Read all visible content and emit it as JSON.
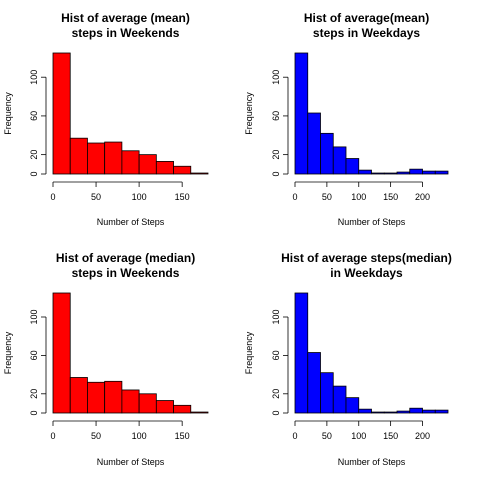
{
  "chart_data": [
    {
      "type": "bar",
      "title_lines": [
        "Hist of average (mean)",
        "steps in Weekends"
      ],
      "xlabel": "Number of Steps",
      "ylabel": "Frequency",
      "bar_color": "#ff0000",
      "bin_edges": [
        0,
        20,
        40,
        60,
        80,
        100,
        120,
        140,
        160,
        180
      ],
      "values": [
        125,
        37,
        32,
        33,
        24,
        20,
        13,
        8,
        1
      ],
      "xlim": [
        -5,
        180
      ],
      "ylim": [
        0,
        125
      ],
      "xticks": [
        0,
        50,
        100,
        150
      ],
      "yticks": [
        0,
        20,
        60,
        100
      ]
    },
    {
      "type": "bar",
      "title_lines": [
        "Hist of average(mean)",
        "steps in Weekdays"
      ],
      "xlabel": "Number of Steps",
      "ylabel": "Frequency",
      "bar_color": "#0000ff",
      "bin_edges": [
        0,
        20,
        40,
        60,
        80,
        100,
        120,
        140,
        160,
        180,
        200,
        220,
        240
      ],
      "values": [
        125,
        63,
        42,
        28,
        16,
        4,
        1,
        1,
        2,
        5,
        3,
        3
      ],
      "xlim": [
        -10,
        240
      ],
      "ylim": [
        0,
        125
      ],
      "xticks": [
        0,
        50,
        100,
        150,
        200
      ],
      "yticks": [
        0,
        20,
        60,
        100
      ]
    },
    {
      "type": "bar",
      "title_lines": [
        "Hist of average (median)",
        "steps in Weekends"
      ],
      "xlabel": "Number of Steps",
      "ylabel": "Frequency",
      "bar_color": "#ff0000",
      "bin_edges": [
        0,
        20,
        40,
        60,
        80,
        100,
        120,
        140,
        160,
        180
      ],
      "values": [
        125,
        37,
        32,
        33,
        24,
        20,
        13,
        8,
        1
      ],
      "xlim": [
        -5,
        180
      ],
      "ylim": [
        0,
        125
      ],
      "xticks": [
        0,
        50,
        100,
        150
      ],
      "yticks": [
        0,
        20,
        60,
        100
      ]
    },
    {
      "type": "bar",
      "title_lines": [
        "Hist of average steps(median)",
        "in Weekdays"
      ],
      "xlabel": "Number of Steps",
      "ylabel": "Frequency",
      "bar_color": "#0000ff",
      "bin_edges": [
        0,
        20,
        40,
        60,
        80,
        100,
        120,
        140,
        160,
        180,
        200,
        220,
        240
      ],
      "values": [
        125,
        63,
        42,
        28,
        16,
        4,
        1,
        1,
        2,
        5,
        3,
        3
      ],
      "xlim": [
        -10,
        240
      ],
      "ylim": [
        0,
        125
      ],
      "xticks": [
        0,
        50,
        100,
        150,
        200
      ],
      "yticks": [
        0,
        20,
        60,
        100
      ]
    }
  ]
}
